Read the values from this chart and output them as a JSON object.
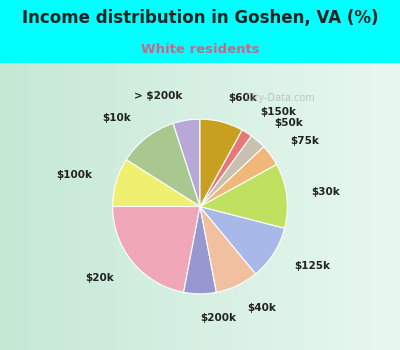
{
  "title": "Income distribution in Goshen, VA (%)",
  "subtitle": "White residents",
  "title_color": "#222222",
  "subtitle_color": "#cc6688",
  "background_outer": "#00ffff",
  "background_inner_tl": "#c8ead8",
  "background_inner_br": "#dff0f8",
  "labels": [
    "> $200k",
    "$10k",
    "$100k",
    "$20k",
    "$200k",
    "$40k",
    "$125k",
    "$30k",
    "$75k",
    "$50k",
    "$150k",
    "$60k"
  ],
  "values": [
    5,
    11,
    9,
    22,
    6,
    8,
    10,
    12,
    4,
    3,
    2,
    8
  ],
  "colors": [
    "#b8a8d8",
    "#a8c890",
    "#f0f070",
    "#f0a8b8",
    "#9898d0",
    "#f0c0a0",
    "#a8b8e8",
    "#c0e060",
    "#f0b878",
    "#c8c0b0",
    "#e87878",
    "#c8a020"
  ],
  "watermark": "City-Data.com"
}
